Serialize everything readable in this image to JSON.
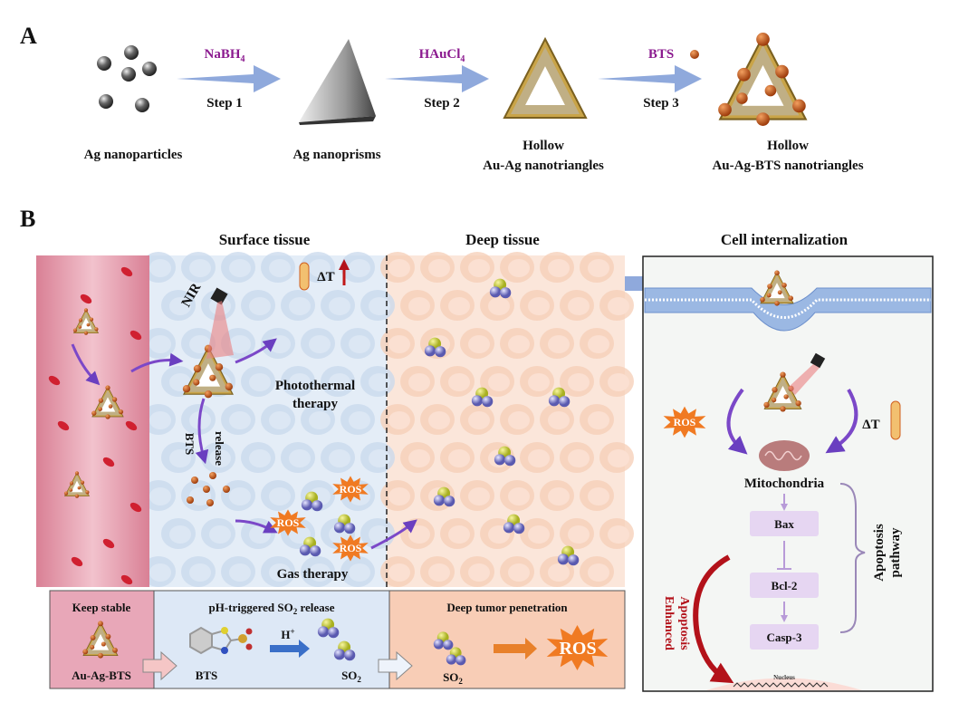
{
  "panel_a": {
    "label": "A",
    "reagents": [
      {
        "name": "NaBH",
        "sub": "4",
        "step": "Step 1"
      },
      {
        "name": "HAuCl",
        "sub": "4",
        "step": "Step 2"
      },
      {
        "name": "BTS",
        "sub": "",
        "step": "Step 3"
      }
    ],
    "products": [
      {
        "line1": "",
        "line2": "Ag nanoparticles"
      },
      {
        "line1": "",
        "line2": "Ag nanoprisms"
      },
      {
        "line1": "Hollow",
        "line2": "Au-Ag nanotriangles"
      },
      {
        "line1": "Hollow",
        "line2": "Au-Ag-BTS nanotriangles"
      }
    ]
  },
  "panel_b": {
    "label": "B",
    "headers": {
      "surface": "Surface tissue",
      "deep": "Deep tissue",
      "cell": "Cell internalization"
    },
    "surface": {
      "nir": "NIR",
      "delta_t": "ΔT",
      "photothermal_1": "Photothermal",
      "photothermal_2": "therapy",
      "bts": "BTS",
      "release": "release",
      "ros": "ROS",
      "gas_therapy": "Gas therapy"
    },
    "cell": {
      "ros": "ROS",
      "delta_t": "ΔT",
      "mitochondria": "Mitochondria",
      "pathway": [
        "Bax",
        "Bcl-2",
        "Casp-3"
      ],
      "apoptosis_pathway_1": "Apoptosis",
      "apoptosis_pathway_2": "pathway",
      "enhanced_1": "Enhanced",
      "enhanced_2": "Apoptosis",
      "nucleus": "Nucleus"
    },
    "bottom": {
      "keep_stable": "Keep stable",
      "au_ag_bts": "Au-Ag-BTS",
      "ph_title_pre": "pH-triggered SO",
      "ph_title_sub": "2",
      "ph_title_post": " release",
      "bts": "BTS",
      "h_plus": "H",
      "h_plus_sup": "+",
      "so2": "SO",
      "so2_sub": "2",
      "deep_title": "Deep tumor penetration",
      "ros": "ROS"
    }
  },
  "colors": {
    "reagent": "#8b1a8f",
    "arrow": "#8fa9dc",
    "ros": "#f07a22",
    "bts_ball": "#c5561a",
    "vessel": "#e9a4b3",
    "surface": "#dfe9f5",
    "deep": "#f8dccb",
    "pathway_box": "#e6d6f2",
    "enhanced": "#b3121a"
  }
}
